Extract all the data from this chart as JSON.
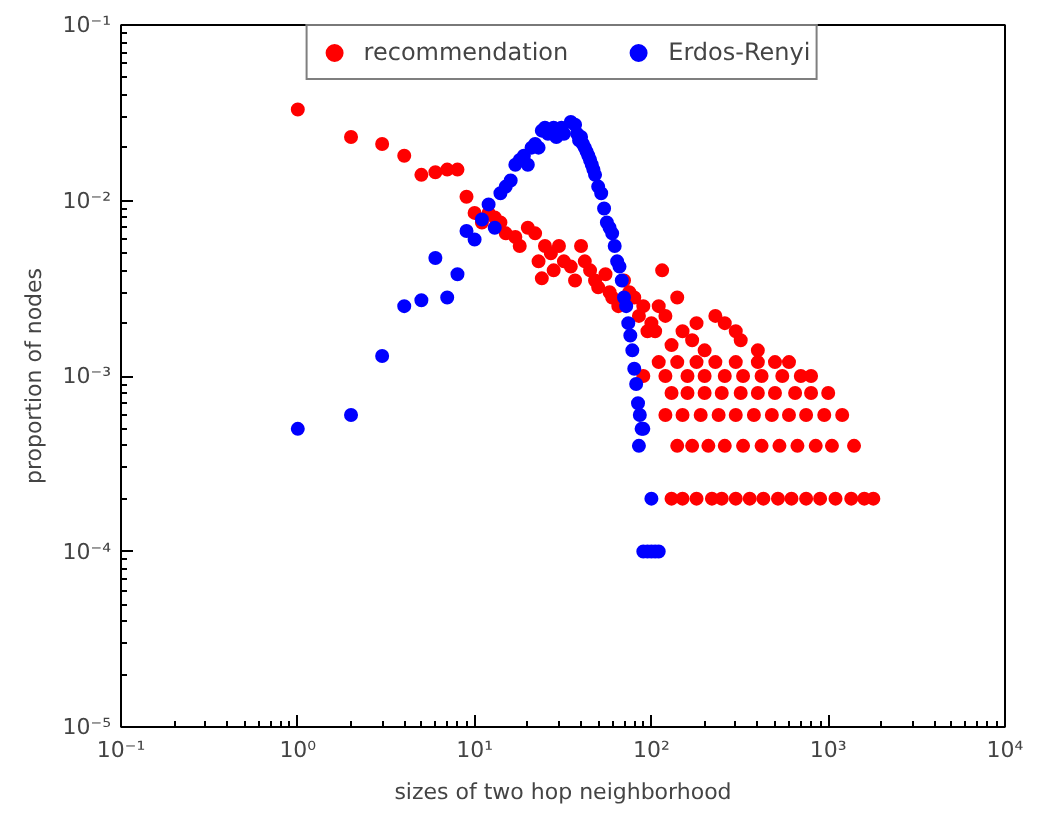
{
  "chart_data": {
    "type": "scatter",
    "xlabel": "sizes of two hop neighborhood",
    "ylabel": "proportion of nodes",
    "log": "xy",
    "grid": false,
    "legend": "top",
    "marker": "circle",
    "xlim": [
      0.1,
      10000
    ],
    "ylim": [
      1e-05,
      0.1
    ],
    "xticks": [
      {
        "value": 0.1,
        "label": "10⁻¹"
      },
      {
        "value": 1,
        "label": "10⁰"
      },
      {
        "value": 10,
        "label": "10¹"
      },
      {
        "value": 100,
        "label": "10²"
      },
      {
        "value": 1000,
        "label": "10³"
      },
      {
        "value": 10000,
        "label": "10⁴"
      }
    ],
    "yticks": [
      {
        "value": 1e-05,
        "label": "10⁻⁵"
      },
      {
        "value": 0.0001,
        "label": "10⁻⁴"
      },
      {
        "value": 0.001,
        "label": "10⁻³"
      },
      {
        "value": 0.01,
        "label": "10⁻²"
      },
      {
        "value": 0.1,
        "label": "10⁻¹"
      }
    ],
    "series": [
      {
        "name": "recommendation",
        "color": "#ff0000",
        "x": [
          1,
          2,
          3,
          4,
          5,
          6,
          7,
          8,
          9,
          10,
          11,
          12,
          13,
          14,
          15,
          17,
          18,
          20,
          22,
          23,
          24,
          25,
          27,
          28,
          30,
          32,
          35,
          37,
          40,
          42,
          45,
          48,
          50,
          55,
          58,
          60,
          65,
          70,
          75,
          80,
          85,
          90,
          95,
          100,
          105,
          110,
          115,
          120,
          130,
          140,
          150,
          170,
          180,
          200,
          230,
          260,
          300,
          320,
          400,
          110,
          140,
          180,
          230,
          300,
          400,
          500,
          600,
          90,
          120,
          160,
          200,
          260,
          330,
          420,
          550,
          700,
          800,
          130,
          160,
          200,
          250,
          320,
          400,
          500,
          650,
          800,
          1000,
          120,
          150,
          190,
          240,
          300,
          380,
          480,
          600,
          750,
          950,
          1200,
          140,
          170,
          210,
          260,
          330,
          420,
          530,
          670,
          850,
          1050,
          1400,
          130,
          150,
          180,
          220,
          250,
          300,
          360,
          430,
          520,
          620,
          750,
          900,
          1100,
          1350,
          1600,
          1800
        ],
        "values": [
          0.033,
          0.023,
          0.021,
          0.018,
          0.014,
          0.0145,
          0.015,
          0.015,
          0.0105,
          0.0085,
          0.0075,
          0.0085,
          0.008,
          0.0075,
          0.0065,
          0.0062,
          0.0055,
          0.007,
          0.0065,
          0.0045,
          0.0036,
          0.0055,
          0.005,
          0.004,
          0.0055,
          0.0045,
          0.0042,
          0.0035,
          0.0055,
          0.0045,
          0.004,
          0.0035,
          0.0032,
          0.0038,
          0.003,
          0.0028,
          0.0025,
          0.0035,
          0.003,
          0.0028,
          0.0022,
          0.0025,
          0.0018,
          0.002,
          0.0018,
          0.0025,
          0.004,
          0.0022,
          0.0015,
          0.0028,
          0.0018,
          0.0016,
          0.002,
          0.0014,
          0.0022,
          0.002,
          0.0018,
          0.0016,
          0.0014,
          0.0012,
          0.0012,
          0.0012,
          0.0012,
          0.0012,
          0.0012,
          0.0012,
          0.0012,
          0.001,
          0.001,
          0.001,
          0.001,
          0.001,
          0.001,
          0.001,
          0.001,
          0.001,
          0.001,
          0.0008,
          0.0008,
          0.0008,
          0.0008,
          0.0008,
          0.0008,
          0.0008,
          0.0008,
          0.0008,
          0.0008,
          0.0006,
          0.0006,
          0.0006,
          0.0006,
          0.0006,
          0.0006,
          0.0006,
          0.0006,
          0.0006,
          0.0006,
          0.0006,
          0.0004,
          0.0004,
          0.0004,
          0.0004,
          0.0004,
          0.0004,
          0.0004,
          0.0004,
          0.0004,
          0.0004,
          0.0004,
          0.0002,
          0.0002,
          0.0002,
          0.0002,
          0.0002,
          0.0002,
          0.0002,
          0.0002,
          0.0002,
          0.0002,
          0.0002,
          0.0002,
          0.0002,
          0.0002,
          0.0002,
          0.0002
        ]
      },
      {
        "name": "Erdos-Renyi",
        "color": "#0000ff",
        "x": [
          1,
          2,
          3,
          4,
          5,
          6,
          7,
          8,
          9,
          10,
          11,
          12,
          13,
          14,
          15,
          16,
          17,
          18,
          19,
          20,
          21,
          22,
          23,
          24,
          25,
          26,
          28,
          29,
          31,
          32,
          35,
          37,
          38,
          39,
          40,
          41,
          42,
          43,
          44,
          45,
          46,
          47,
          48,
          50,
          52,
          54,
          56,
          58,
          60,
          62,
          64,
          66,
          68,
          70,
          72,
          74,
          76,
          78,
          80,
          82,
          84,
          86,
          88,
          90,
          85,
          100,
          90,
          95,
          100,
          105,
          110
        ],
        "values": [
          0.0005,
          0.0006,
          0.0013,
          0.0025,
          0.0027,
          0.0047,
          0.0028,
          0.0038,
          0.0067,
          0.006,
          0.0078,
          0.0095,
          0.007,
          0.011,
          0.012,
          0.013,
          0.016,
          0.017,
          0.018,
          0.016,
          0.02,
          0.021,
          0.02,
          0.025,
          0.026,
          0.024,
          0.026,
          0.023,
          0.026,
          0.024,
          0.028,
          0.027,
          0.024,
          0.022,
          0.023,
          0.021,
          0.02,
          0.019,
          0.018,
          0.017,
          0.016,
          0.015,
          0.014,
          0.012,
          0.011,
          0.009,
          0.0075,
          0.007,
          0.0065,
          0.0055,
          0.0045,
          0.0042,
          0.0035,
          0.0028,
          0.0025,
          0.002,
          0.0017,
          0.0014,
          0.0011,
          0.0009,
          0.0007,
          0.0006,
          0.0005,
          0.0005,
          0.0004,
          0.0002,
          0.0001,
          0.0001,
          0.0001,
          0.0001,
          0.0001
        ]
      }
    ]
  }
}
